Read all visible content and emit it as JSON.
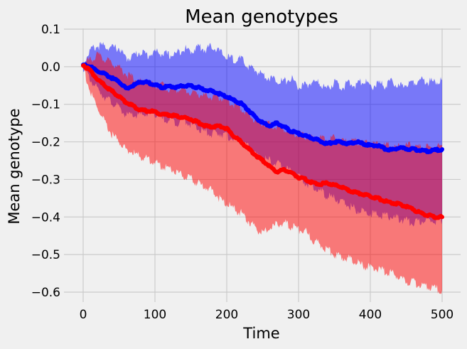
{
  "chart_data": {
    "type": "line",
    "title": "Mean genotypes",
    "xlabel": "Time",
    "ylabel": "Mean genotype",
    "xlim": [
      -25,
      525
    ],
    "ylim": [
      -0.62,
      0.1
    ],
    "xticks": [
      0,
      100,
      200,
      300,
      400,
      500
    ],
    "yticks": [
      0.1,
      0.0,
      -0.1,
      -0.2,
      -0.3,
      -0.4,
      -0.5,
      -0.6
    ],
    "ytick_labels": [
      "0.1",
      "0.0",
      "−0.1",
      "−0.2",
      "−0.3",
      "−0.4",
      "−0.5",
      "−0.6"
    ],
    "grid": true,
    "colors": {
      "background": "#f0f0f0",
      "grid": "#cbcbcb",
      "blue": "#0000ff",
      "red": "#ff0000"
    },
    "x": [
      0,
      10,
      20,
      30,
      40,
      50,
      60,
      70,
      80,
      90,
      100,
      110,
      120,
      130,
      140,
      150,
      160,
      170,
      180,
      190,
      200,
      210,
      220,
      230,
      240,
      250,
      260,
      270,
      280,
      290,
      300,
      310,
      320,
      330,
      340,
      350,
      360,
      370,
      380,
      390,
      400,
      410,
      420,
      430,
      440,
      450,
      460,
      470,
      480,
      490,
      500
    ],
    "series": [
      {
        "color": "#0000ff",
        "band_opacity": 0.5,
        "mean": [
          0.005,
          0.0,
          -0.012,
          -0.02,
          -0.03,
          -0.04,
          -0.058,
          -0.05,
          -0.04,
          -0.042,
          -0.048,
          -0.055,
          -0.052,
          -0.055,
          -0.05,
          -0.052,
          -0.055,
          -0.062,
          -0.065,
          -0.072,
          -0.08,
          -0.09,
          -0.098,
          -0.115,
          -0.135,
          -0.15,
          -0.158,
          -0.15,
          -0.16,
          -0.172,
          -0.178,
          -0.185,
          -0.19,
          -0.198,
          -0.205,
          -0.2,
          -0.2,
          -0.205,
          -0.2,
          -0.205,
          -0.21,
          -0.21,
          -0.218,
          -0.222,
          -0.215,
          -0.218,
          -0.22,
          -0.222,
          -0.225,
          -0.222,
          -0.22
        ],
        "upper": [
          0.01,
          0.045,
          0.055,
          0.055,
          0.05,
          0.05,
          0.02,
          0.03,
          0.04,
          0.03,
          0.04,
          0.035,
          0.03,
          0.035,
          0.05,
          0.04,
          0.055,
          0.045,
          0.055,
          0.04,
          0.025,
          0.02,
          0.02,
          0.0,
          -0.01,
          -0.02,
          -0.03,
          -0.035,
          -0.04,
          -0.03,
          -0.055,
          -0.05,
          -0.04,
          -0.045,
          -0.06,
          -0.04,
          -0.055,
          -0.045,
          -0.05,
          -0.035,
          -0.055,
          -0.045,
          -0.05,
          -0.04,
          -0.055,
          -0.045,
          -0.04,
          -0.035,
          -0.04,
          -0.04,
          -0.035
        ],
        "lower": [
          0.0,
          -0.035,
          -0.06,
          -0.08,
          -0.095,
          -0.11,
          -0.13,
          -0.13,
          -0.13,
          -0.125,
          -0.125,
          -0.14,
          -0.14,
          -0.15,
          -0.14,
          -0.155,
          -0.165,
          -0.175,
          -0.18,
          -0.175,
          -0.185,
          -0.19,
          -0.2,
          -0.215,
          -0.235,
          -0.245,
          -0.25,
          -0.26,
          -0.265,
          -0.28,
          -0.295,
          -0.31,
          -0.32,
          -0.33,
          -0.345,
          -0.35,
          -0.36,
          -0.37,
          -0.38,
          -0.385,
          -0.39,
          -0.395,
          -0.395,
          -0.4,
          -0.405,
          -0.41,
          -0.415,
          -0.41,
          -0.41,
          -0.41,
          -0.41
        ]
      },
      {
        "color": "#ff0000",
        "band_opacity": 0.5,
        "mean": [
          0.005,
          -0.01,
          -0.035,
          -0.05,
          -0.065,
          -0.08,
          -0.095,
          -0.105,
          -0.115,
          -0.118,
          -0.12,
          -0.128,
          -0.128,
          -0.132,
          -0.135,
          -0.14,
          -0.148,
          -0.158,
          -0.16,
          -0.158,
          -0.165,
          -0.185,
          -0.2,
          -0.218,
          -0.235,
          -0.25,
          -0.265,
          -0.28,
          -0.275,
          -0.282,
          -0.295,
          -0.3,
          -0.31,
          -0.312,
          -0.31,
          -0.315,
          -0.32,
          -0.33,
          -0.335,
          -0.34,
          -0.345,
          -0.35,
          -0.358,
          -0.362,
          -0.365,
          -0.372,
          -0.38,
          -0.39,
          -0.395,
          -0.4,
          -0.4
        ],
        "upper": [
          0.005,
          0.02,
          0.03,
          0.02,
          0.01,
          0.0,
          -0.02,
          -0.03,
          -0.04,
          -0.04,
          -0.05,
          -0.05,
          -0.06,
          -0.06,
          -0.06,
          -0.07,
          -0.07,
          -0.08,
          -0.08,
          -0.08,
          -0.09,
          -0.1,
          -0.11,
          -0.13,
          -0.14,
          -0.15,
          -0.155,
          -0.16,
          -0.165,
          -0.175,
          -0.18,
          -0.185,
          -0.19,
          -0.19,
          -0.19,
          -0.19,
          -0.195,
          -0.2,
          -0.2,
          -0.205,
          -0.205,
          -0.21,
          -0.21,
          -0.21,
          -0.215,
          -0.21,
          -0.21,
          -0.215,
          -0.215,
          -0.215,
          -0.21
        ],
        "lower": [
          0.0,
          -0.07,
          -0.11,
          -0.15,
          -0.18,
          -0.2,
          -0.22,
          -0.23,
          -0.24,
          -0.245,
          -0.255,
          -0.265,
          -0.27,
          -0.28,
          -0.29,
          -0.3,
          -0.31,
          -0.32,
          -0.33,
          -0.35,
          -0.365,
          -0.38,
          -0.39,
          -0.41,
          -0.43,
          -0.445,
          -0.43,
          -0.42,
          -0.415,
          -0.425,
          -0.435,
          -0.44,
          -0.46,
          -0.475,
          -0.485,
          -0.5,
          -0.505,
          -0.51,
          -0.52,
          -0.53,
          -0.535,
          -0.54,
          -0.545,
          -0.55,
          -0.56,
          -0.57,
          -0.575,
          -0.58,
          -0.585,
          -0.59,
          -0.595
        ]
      }
    ]
  }
}
